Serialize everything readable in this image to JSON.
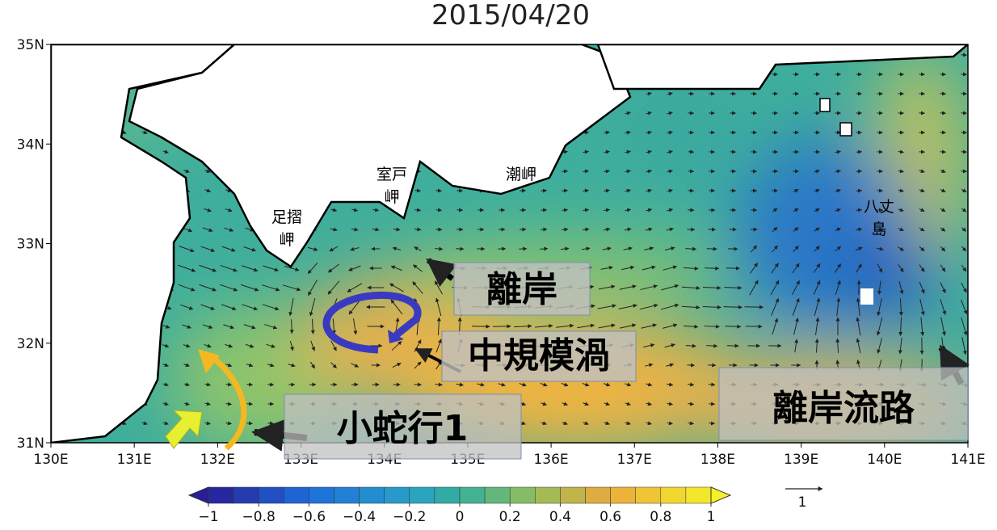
{
  "title": "2015/04/20",
  "map": {
    "xlim": [
      130,
      141
    ],
    "ylim": [
      31,
      35
    ],
    "lat_ticks": [
      {
        "value": 35,
        "label": "35N"
      },
      {
        "value": 34,
        "label": "34N"
      },
      {
        "value": 33,
        "label": "33N"
      },
      {
        "value": 32,
        "label": "32N"
      },
      {
        "value": 31,
        "label": "31N"
      }
    ],
    "lon_ticks": [
      {
        "value": 130,
        "label": "130E"
      },
      {
        "value": 131,
        "label": "131E"
      },
      {
        "value": 132,
        "label": "132E"
      },
      {
        "value": 133,
        "label": "133E"
      },
      {
        "value": 134,
        "label": "134E"
      },
      {
        "value": 135,
        "label": "135E"
      },
      {
        "value": 136,
        "label": "136E"
      },
      {
        "value": 137,
        "label": "137E"
      },
      {
        "value": 138,
        "label": "138E"
      },
      {
        "value": 139,
        "label": "139E"
      },
      {
        "value": 140,
        "label": "140E"
      },
      {
        "value": 141,
        "label": "141E"
      }
    ],
    "place_labels": [
      [
        "足摺",
        "岬"
      ],
      [
        "室戸",
        "岬"
      ],
      [
        "潮岬"
      ],
      [
        "八丈",
        "島"
      ]
    ],
    "annotations": [
      "離岸",
      "中規模渦",
      "小蛇行1",
      "離岸流路"
    ]
  },
  "colorbar": {
    "ticks": [
      {
        "value": -1,
        "label": "−1"
      },
      {
        "value": -0.8,
        "label": "−0.8"
      },
      {
        "value": -0.6,
        "label": "−0.6"
      },
      {
        "value": -0.4,
        "label": "−0.4"
      },
      {
        "value": -0.2,
        "label": "−0.2"
      },
      0,
      0.2,
      0.4,
      0.6,
      0.8,
      1
    ]
  },
  "vector_scale": 1
}
